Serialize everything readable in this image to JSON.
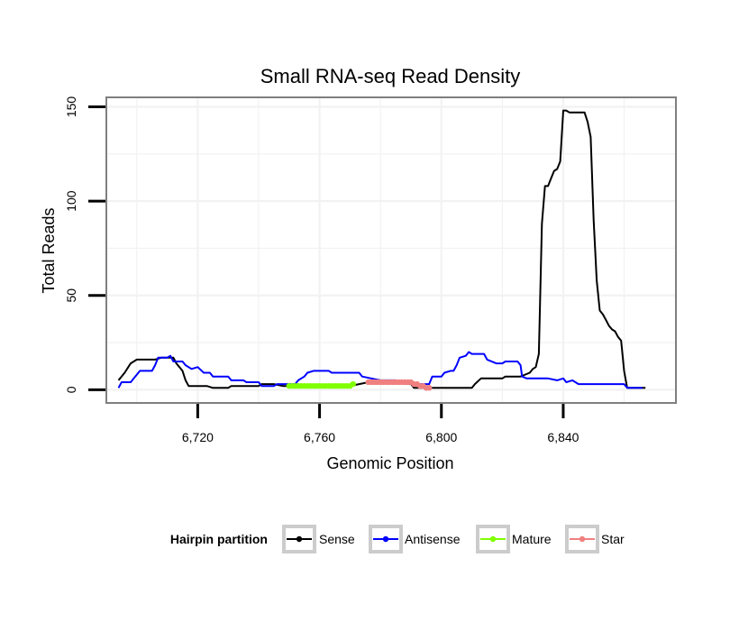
{
  "chart_data": {
    "type": "line",
    "title": "Small RNA-seq Read Density",
    "xlabel": "Genomic Position",
    "ylabel": "Total Reads",
    "xlim": [
      6690,
      6877
    ],
    "ylim": [
      -7,
      155
    ],
    "x_ticks": [
      6720,
      6760,
      6800,
      6840
    ],
    "x_tick_labels": [
      "6,720",
      "6,760",
      "6,800",
      "6,840"
    ],
    "y_ticks": [
      0,
      50,
      100,
      150
    ],
    "y_tick_labels": [
      "0",
      "50",
      "100",
      "150"
    ],
    "grid": true,
    "legend": {
      "title": "Hairpin partition",
      "position": "bottom",
      "entries": [
        "Sense",
        "Antisense",
        "Mature",
        "Star"
      ]
    },
    "colors": {
      "Sense": "#000000",
      "Antisense": "#0000ff",
      "Mature": "#7fff00",
      "Star": "#f08080"
    },
    "series": [
      {
        "name": "Sense",
        "points": [
          [
            6694,
            5
          ],
          [
            6696,
            9
          ],
          [
            6698,
            14
          ],
          [
            6700,
            16
          ],
          [
            6702,
            16
          ],
          [
            6704,
            16
          ],
          [
            6706,
            16
          ],
          [
            6708,
            17
          ],
          [
            6710,
            17
          ],
          [
            6712,
            17
          ],
          [
            6713,
            14
          ],
          [
            6715,
            10
          ],
          [
            6716,
            5
          ],
          [
            6717,
            2
          ],
          [
            6720,
            2
          ],
          [
            6723,
            2
          ],
          [
            6725,
            1
          ],
          [
            6730,
            1
          ],
          [
            6731,
            2
          ],
          [
            6740,
            2
          ],
          [
            6741,
            3
          ],
          [
            6745,
            3
          ],
          [
            6748,
            2
          ],
          [
            6760,
            2
          ],
          [
            6770,
            2
          ],
          [
            6773,
            3
          ],
          [
            6776,
            4
          ],
          [
            6780,
            4
          ],
          [
            6790,
            3
          ],
          [
            6791,
            1
          ],
          [
            6800,
            1
          ],
          [
            6810,
            1
          ],
          [
            6811,
            3
          ],
          [
            6813,
            6
          ],
          [
            6820,
            6
          ],
          [
            6821,
            7
          ],
          [
            6826,
            7
          ],
          [
            6829,
            9
          ],
          [
            6830,
            11
          ],
          [
            6831,
            12
          ],
          [
            6832,
            19
          ],
          [
            6833,
            88
          ],
          [
            6834,
            108
          ],
          [
            6835,
            108
          ],
          [
            6836,
            112
          ],
          [
            6837,
            116
          ],
          [
            6838,
            117
          ],
          [
            6839,
            121
          ],
          [
            6840,
            148
          ],
          [
            6841,
            148
          ],
          [
            6842,
            147
          ],
          [
            6843,
            147
          ],
          [
            6844,
            147
          ],
          [
            6845,
            147
          ],
          [
            6846,
            147
          ],
          [
            6847,
            147
          ],
          [
            6848,
            142
          ],
          [
            6849,
            134
          ],
          [
            6850,
            90
          ],
          [
            6851,
            58
          ],
          [
            6852,
            42
          ],
          [
            6853,
            40
          ],
          [
            6854,
            37
          ],
          [
            6855,
            34
          ],
          [
            6856,
            32
          ],
          [
            6857,
            31
          ],
          [
            6858,
            28
          ],
          [
            6859,
            26
          ],
          [
            6860,
            10
          ],
          [
            6861,
            1
          ],
          [
            6867,
            1
          ]
        ]
      },
      {
        "name": "Antisense",
        "points": [
          [
            6694,
            1
          ],
          [
            6695,
            4
          ],
          [
            6697,
            4
          ],
          [
            6698,
            4
          ],
          [
            6699,
            6
          ],
          [
            6700,
            8
          ],
          [
            6701,
            10
          ],
          [
            6703,
            10
          ],
          [
            6705,
            10
          ],
          [
            6706,
            13
          ],
          [
            6707,
            17
          ],
          [
            6710,
            17
          ],
          [
            6711,
            18
          ],
          [
            6712,
            15
          ],
          [
            6715,
            15
          ],
          [
            6716,
            13
          ],
          [
            6718,
            11
          ],
          [
            6720,
            12
          ],
          [
            6722,
            9
          ],
          [
            6724,
            9
          ],
          [
            6725,
            7
          ],
          [
            6730,
            7
          ],
          [
            6731,
            5
          ],
          [
            6735,
            5
          ],
          [
            6736,
            4
          ],
          [
            6740,
            4
          ],
          [
            6741,
            2
          ],
          [
            6745,
            2
          ],
          [
            6746,
            3
          ],
          [
            6752,
            3
          ],
          [
            6753,
            5
          ],
          [
            6755,
            7
          ],
          [
            6756,
            9
          ],
          [
            6758,
            10
          ],
          [
            6763,
            10
          ],
          [
            6764,
            9
          ],
          [
            6773,
            9
          ],
          [
            6774,
            7
          ],
          [
            6777,
            6
          ],
          [
            6780,
            5
          ],
          [
            6785,
            5
          ],
          [
            6786,
            4
          ],
          [
            6790,
            4
          ],
          [
            6791,
            3
          ],
          [
            6796,
            3
          ],
          [
            6797,
            7
          ],
          [
            6800,
            7
          ],
          [
            6801,
            9
          ],
          [
            6803,
            10
          ],
          [
            6804,
            10
          ],
          [
            6805,
            13
          ],
          [
            6806,
            17
          ],
          [
            6808,
            18
          ],
          [
            6809,
            20
          ],
          [
            6810,
            19
          ],
          [
            6814,
            19
          ],
          [
            6815,
            16
          ],
          [
            6818,
            14
          ],
          [
            6820,
            14
          ],
          [
            6821,
            15
          ],
          [
            6825,
            15
          ],
          [
            6826,
            13
          ],
          [
            6826.5,
            7
          ],
          [
            6828,
            6
          ],
          [
            6835,
            6
          ],
          [
            6838,
            5
          ],
          [
            6840,
            6
          ],
          [
            6841,
            4
          ],
          [
            6843,
            5
          ],
          [
            6845,
            3
          ],
          [
            6860,
            3
          ],
          [
            6861,
            1
          ],
          [
            6866,
            1
          ]
        ]
      },
      {
        "name": "Mature",
        "points": [
          [
            6750,
            2
          ],
          [
            6751,
            2
          ],
          [
            6752,
            2
          ],
          [
            6753,
            2
          ],
          [
            6754,
            2
          ],
          [
            6755,
            2
          ],
          [
            6756,
            2
          ],
          [
            6757,
            2
          ],
          [
            6758,
            2
          ],
          [
            6759,
            2
          ],
          [
            6760,
            2
          ],
          [
            6761,
            2
          ],
          [
            6762,
            2
          ],
          [
            6763,
            2
          ],
          [
            6764,
            2
          ],
          [
            6765,
            2
          ],
          [
            6766,
            2
          ],
          [
            6767,
            2
          ],
          [
            6768,
            2
          ],
          [
            6769,
            2
          ],
          [
            6770,
            2
          ],
          [
            6771,
            3
          ]
        ]
      },
      {
        "name": "Star",
        "points": [
          [
            6776,
            4
          ],
          [
            6777,
            4
          ],
          [
            6778,
            4
          ],
          [
            6779,
            4
          ],
          [
            6780,
            4
          ],
          [
            6781,
            4
          ],
          [
            6782,
            4
          ],
          [
            6783,
            4
          ],
          [
            6784,
            4
          ],
          [
            6785,
            4
          ],
          [
            6786,
            4
          ],
          [
            6787,
            4
          ],
          [
            6788,
            4
          ],
          [
            6789,
            4
          ],
          [
            6790,
            4
          ],
          [
            6791,
            3
          ],
          [
            6792,
            3
          ],
          [
            6793,
            2
          ],
          [
            6794,
            2
          ],
          [
            6795,
            1
          ],
          [
            6796,
            1
          ]
        ]
      }
    ]
  }
}
